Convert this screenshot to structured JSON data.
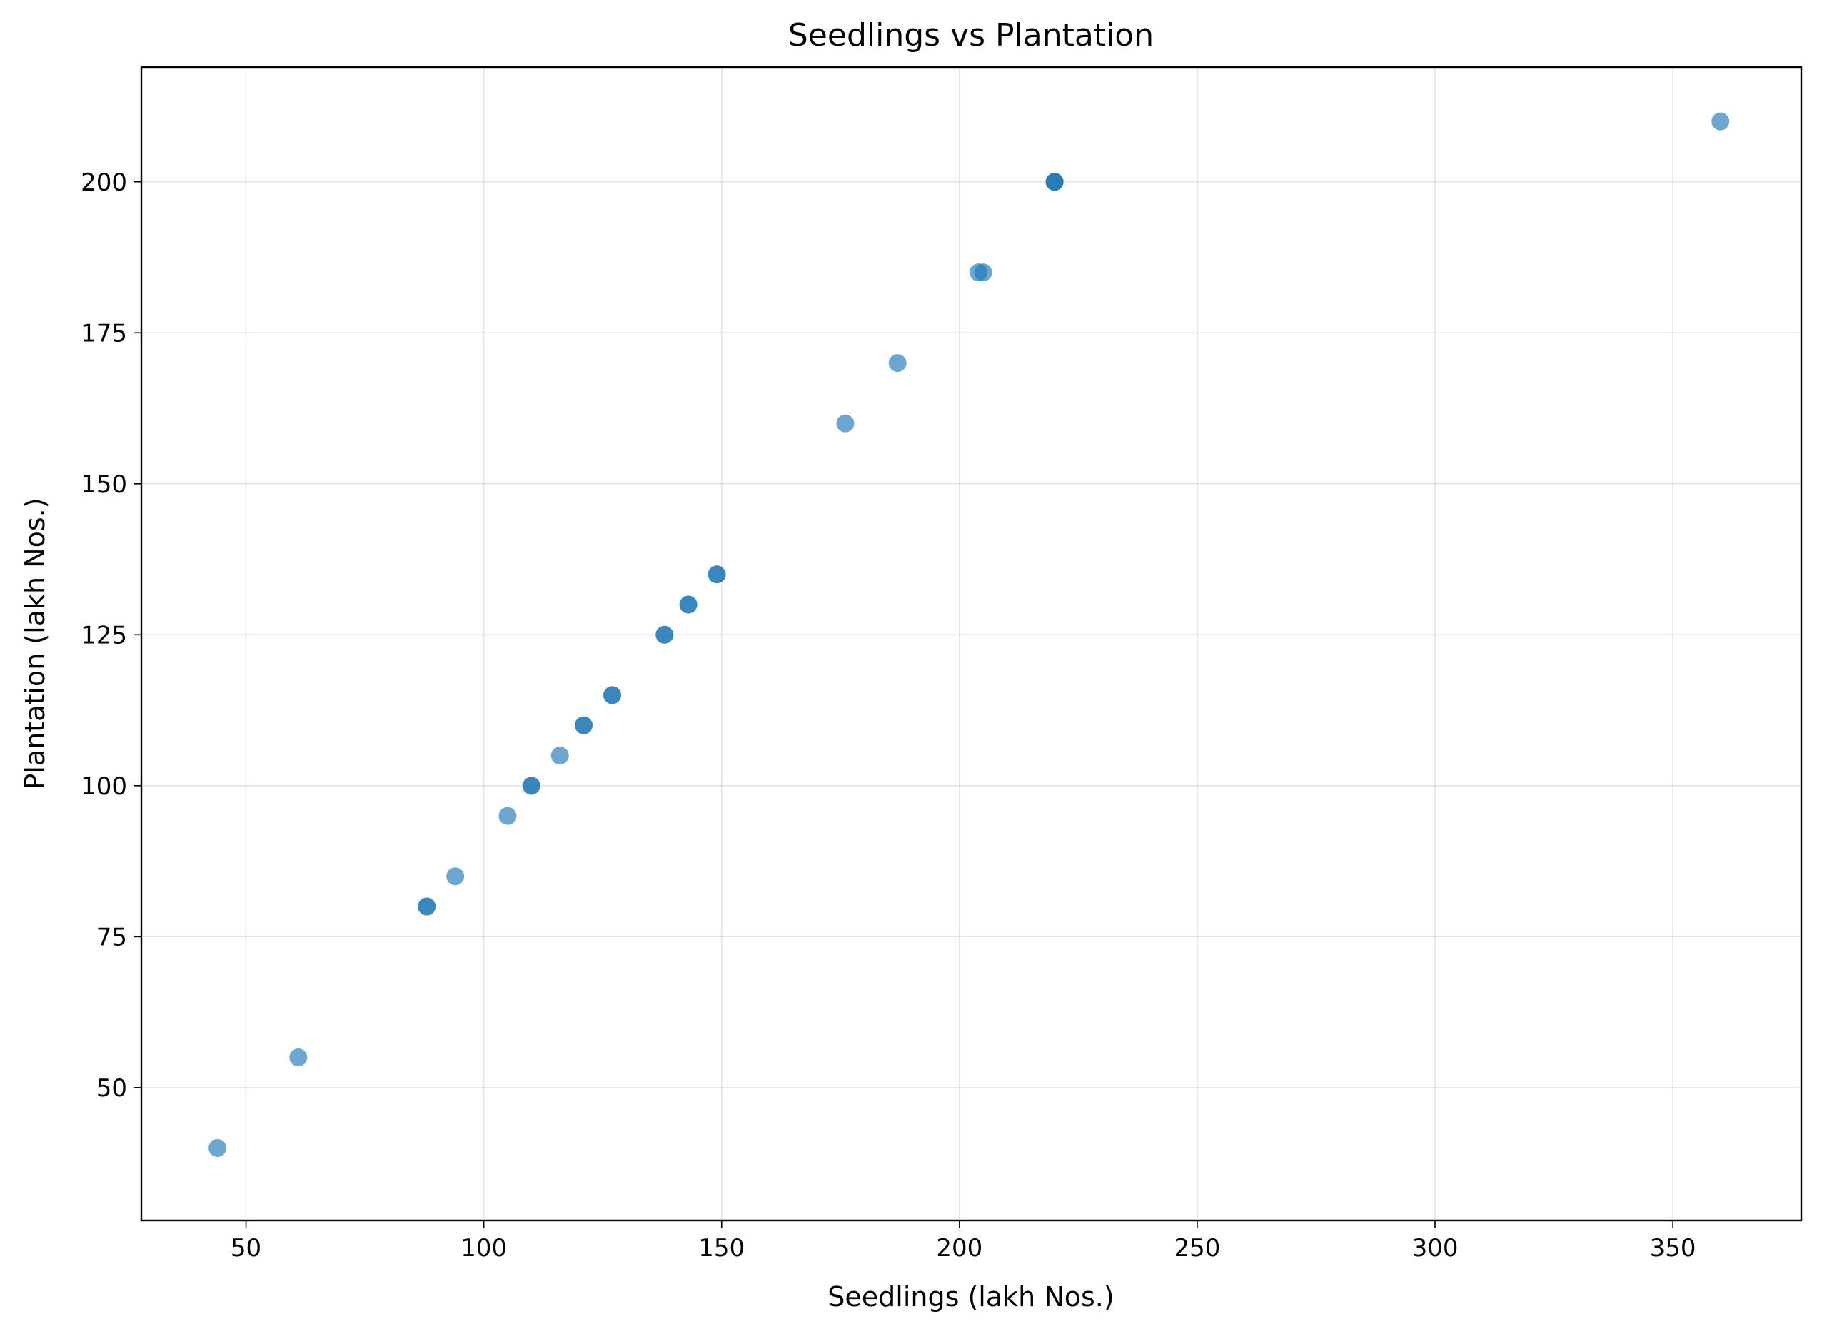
{
  "chart_data": {
    "type": "scatter",
    "title": "Seedlings vs Plantation",
    "xlabel": "Seedlings (lakh Nos.)",
    "ylabel": "Plantation (lakh Nos.)",
    "xlim": [
      28,
      377
    ],
    "ylim": [
      28,
      219
    ],
    "xticks": [
      50,
      100,
      150,
      200,
      250,
      300,
      350
    ],
    "yticks": [
      50,
      75,
      100,
      125,
      150,
      175,
      200
    ],
    "grid": true,
    "marker_color": "#1f77b4",
    "marker_alpha": 0.65,
    "series": [
      {
        "name": "Seedlings vs Plantation",
        "points": [
          {
            "x": 44,
            "y": 40
          },
          {
            "x": 61,
            "y": 55
          },
          {
            "x": 88,
            "y": 80
          },
          {
            "x": 88,
            "y": 80
          },
          {
            "x": 94,
            "y": 85
          },
          {
            "x": 105,
            "y": 95
          },
          {
            "x": 110,
            "y": 100
          },
          {
            "x": 110,
            "y": 100
          },
          {
            "x": 116,
            "y": 105
          },
          {
            "x": 121,
            "y": 110
          },
          {
            "x": 121,
            "y": 110
          },
          {
            "x": 127,
            "y": 115
          },
          {
            "x": 127,
            "y": 115
          },
          {
            "x": 138,
            "y": 125
          },
          {
            "x": 138,
            "y": 125
          },
          {
            "x": 143,
            "y": 130
          },
          {
            "x": 143,
            "y": 130
          },
          {
            "x": 149,
            "y": 135
          },
          {
            "x": 149,
            "y": 135
          },
          {
            "x": 176,
            "y": 160
          },
          {
            "x": 187,
            "y": 170
          },
          {
            "x": 204,
            "y": 185
          },
          {
            "x": 205,
            "y": 185
          },
          {
            "x": 220,
            "y": 200
          },
          {
            "x": 220,
            "y": 200
          },
          {
            "x": 220,
            "y": 200
          },
          {
            "x": 360,
            "y": 210
          }
        ]
      }
    ]
  }
}
